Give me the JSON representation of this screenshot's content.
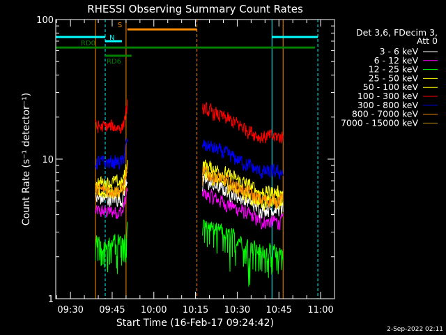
{
  "chart_data": {
    "type": "line",
    "title": "RHESSI Observing Summary Count Rates",
    "xlabel": "Start Time (16-Feb-17 09:24:42)",
    "ylabel": "Count Rate (s⁻¹ detector⁻¹)",
    "yscale": "log",
    "ylim": [
      1,
      100
    ],
    "y_ticks": [
      {
        "value": 1,
        "label": "1"
      },
      {
        "value": 10,
        "label": "10"
      },
      {
        "value": 100,
        "label": "100"
      }
    ],
    "xlim": [
      "09:24:42",
      "11:05"
    ],
    "x_ticks": [
      "09:30",
      "09:45",
      "10:00",
      "10:15",
      "10:30",
      "10:45",
      "11:00"
    ],
    "legend_header": [
      "Det 3,6, FDecim 3,",
      "Att 0"
    ],
    "legend_position": "right",
    "series": [
      {
        "name": "3 - 6 keV",
        "color": "#ffffff",
        "base_level": 5.2
      },
      {
        "name": "6 - 12 keV",
        "color": "#ff00ff",
        "base_level": 4.2
      },
      {
        "name": "12 - 25 keV",
        "color": "#00ff00",
        "base_level": 2.6
      },
      {
        "name": "25 - 50 keV",
        "color": "#ffff00",
        "base_level": 5.8
      },
      {
        "name": "50 - 100 keV",
        "color": "#ffff00",
        "base_level": 6.8
      },
      {
        "name": "100 - 300 keV",
        "color": "#ff0000",
        "base_level": 17.0
      },
      {
        "name": "300 - 800 keV",
        "color": "#0000ff",
        "base_level": 9.5
      },
      {
        "name": "800 - 7000 keV",
        "color": "#ff8c00",
        "base_level": 6.0
      },
      {
        "name": "7000 - 15000 keV",
        "color": "#b8860b",
        "base_level": 4.0
      }
    ],
    "data_segments": [
      {
        "start": "09:39:00",
        "end": "09:50:30"
      },
      {
        "start": "10:17:30",
        "end": "10:46:30"
      }
    ],
    "state_bars": [
      {
        "label": "",
        "color": "#00ffff",
        "level": 75,
        "start": "09:24:42",
        "end": "09:42:30"
      },
      {
        "label": "",
        "color": "#00ffff",
        "level": 75,
        "start": "10:42:30",
        "end": "10:59:00"
      },
      {
        "label": "S",
        "color": "#ff8c00",
        "level": 85,
        "start": "09:50:30",
        "end": "10:15:30"
      },
      {
        "label": "N",
        "color": "#00ffff",
        "level": 70,
        "start": "09:42:30",
        "end": "09:48:30"
      },
      {
        "label": "RD0",
        "color": "#008000",
        "level": 63,
        "start": "09:24:42",
        "end": "10:15:30"
      },
      {
        "label": "RD0",
        "color": "#008000",
        "level": 63,
        "start": "10:15:30",
        "end": "10:26:00"
      },
      {
        "label": "RD0",
        "color": "#008000",
        "level": 63,
        "start": "10:26:00",
        "end": "10:58:00"
      },
      {
        "label": "RD6",
        "color": "#008000",
        "level": 55,
        "start": "09:42:30",
        "end": "09:52:00"
      }
    ],
    "vertical_markers": [
      {
        "time": "09:39:00",
        "color": "#ff8c00",
        "style": "solid"
      },
      {
        "time": "09:42:30",
        "color": "#00ffff",
        "style": "dashed"
      },
      {
        "time": "09:50:00",
        "color": "#ff8c00",
        "style": "solid"
      },
      {
        "time": "10:15:30",
        "color": "#ff8c00",
        "style": "dashed"
      },
      {
        "time": "10:42:30",
        "color": "#00ffff",
        "style": "solid"
      },
      {
        "time": "10:46:30",
        "color": "#ff8c00",
        "style": "solid"
      },
      {
        "time": "10:59:00",
        "color": "#00ffff",
        "style": "dashed"
      }
    ]
  },
  "footer": {
    "date": "2-Sep-2022 02:11"
  }
}
